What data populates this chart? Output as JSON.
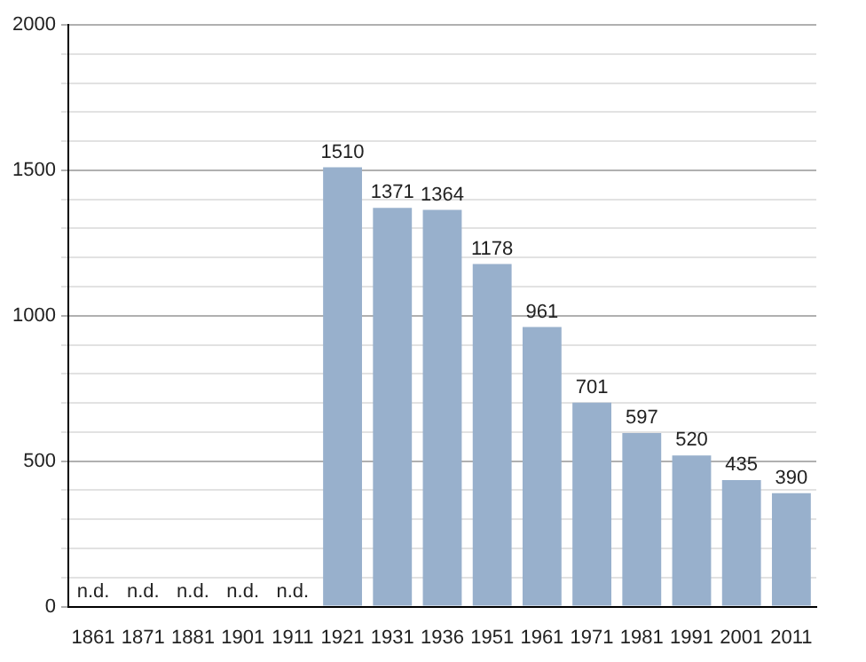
{
  "chart_data": {
    "type": "bar",
    "categories": [
      "1861",
      "1871",
      "1881",
      "1901",
      "1911",
      "1921",
      "1931",
      "1936",
      "1951",
      "1961",
      "1971",
      "1981",
      "1991",
      "2001",
      "2011"
    ],
    "values": [
      null,
      null,
      null,
      null,
      null,
      1510,
      1371,
      1364,
      1178,
      961,
      701,
      597,
      520,
      435,
      390
    ],
    "value_labels": [
      "n.d.",
      "n.d.",
      "n.d.",
      "n.d.",
      "n.d.",
      "1510",
      "1371",
      "1364",
      "1178",
      "961",
      "701",
      "597",
      "520",
      "435",
      "390"
    ],
    "color": "#98b0cc",
    "ylim": [
      0,
      2000
    ],
    "yticks": [
      0,
      {
        "value": 100,
        "label": null
      },
      {
        "value": 200,
        "label": null
      },
      {
        "value": 300,
        "label": null
      },
      {
        "value": 400,
        "label": null
      },
      500,
      {
        "value": 600,
        "label": null
      },
      {
        "value": 700,
        "label": null
      },
      {
        "value": 800,
        "label": null
      },
      {
        "value": 900,
        "label": null
      },
      1000,
      {
        "value": 1100,
        "label": null
      },
      {
        "value": 1200,
        "label": null
      },
      {
        "value": 1300,
        "label": null
      },
      {
        "value": 1400,
        "label": null
      },
      1500,
      {
        "value": 1600,
        "label": null
      },
      {
        "value": 1700,
        "label": null
      },
      {
        "value": 1800,
        "label": null
      },
      {
        "value": 1900,
        "label": null
      },
      2000
    ],
    "grid": true
  }
}
